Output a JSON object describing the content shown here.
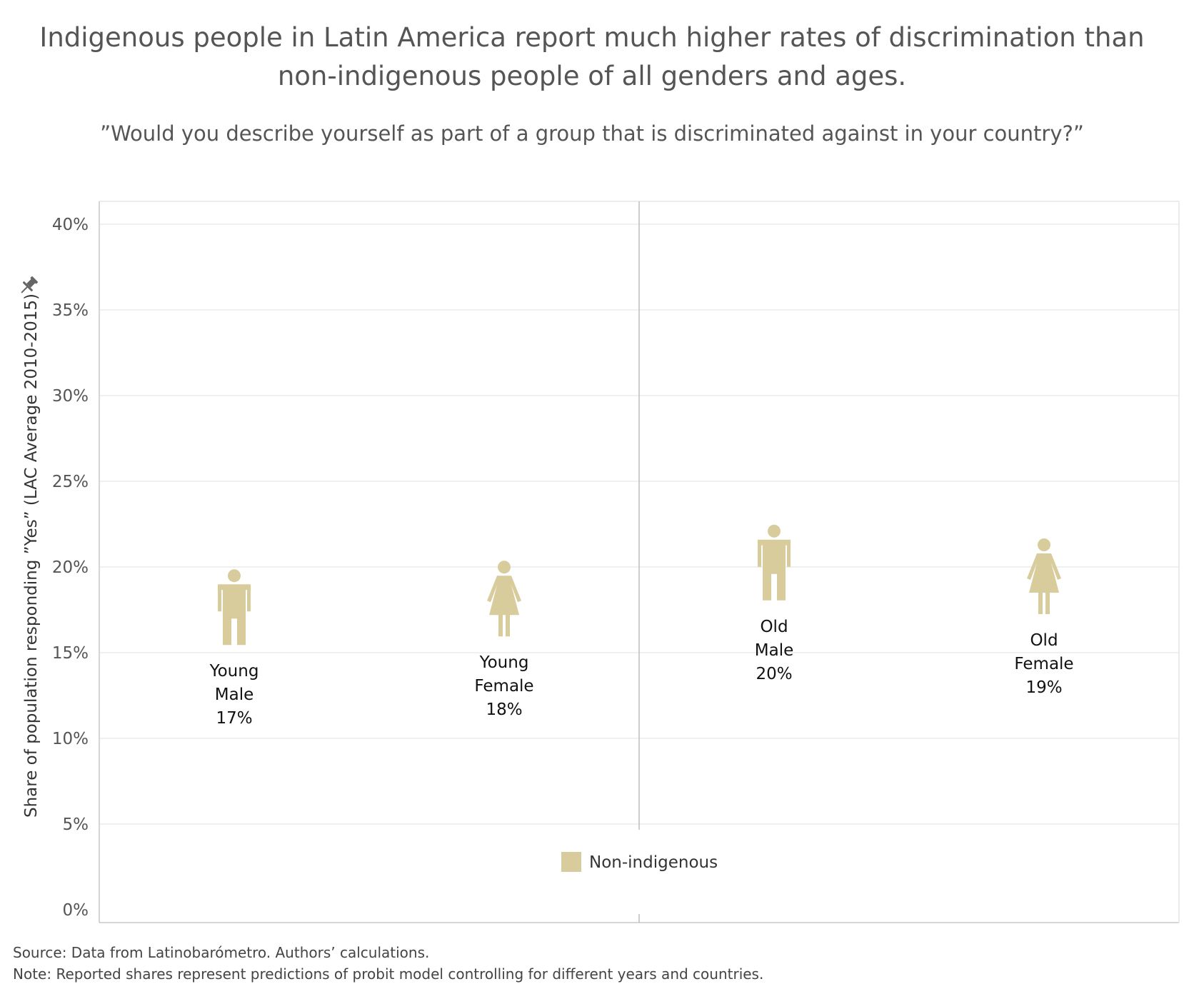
{
  "chart_data": {
    "type": "scatter",
    "title_lines": [
      "Indigenous people in Latin America report much higher rates of discrimination than",
      "non-indigenous people of all genders and ages."
    ],
    "subtitle": "”Would you describe yourself as part of a group that is discriminated against in your country?”",
    "ylabel": "Share of population responding ”Yes” (LAC Average 2010-2015)",
    "ylim": [
      0,
      42
    ],
    "y_ticks": [
      {
        "value": 0,
        "label": "0%"
      },
      {
        "value": 5,
        "label": "5%"
      },
      {
        "value": 10,
        "label": "10%"
      },
      {
        "value": 15,
        "label": "15%"
      },
      {
        "value": 20,
        "label": "20%"
      },
      {
        "value": 25,
        "label": "25%"
      },
      {
        "value": 30,
        "label": "30%"
      },
      {
        "value": 35,
        "label": "35%"
      },
      {
        "value": 40,
        "label": "40%"
      }
    ],
    "grid": true,
    "panels": [
      "Young",
      "Old"
    ],
    "series": [
      {
        "name": "Non-indigenous",
        "color": "#d8cc9c",
        "points": [
          {
            "group": "Young",
            "gender": "Male",
            "label_lines": [
              "Young",
              "Male",
              "17%"
            ],
            "value": 17.2
          },
          {
            "group": "Young",
            "gender": "Female",
            "label_lines": [
              "Young",
              "Female",
              "18%"
            ],
            "value": 17.7
          },
          {
            "group": "Old",
            "gender": "Male",
            "label_lines": [
              "Old",
              "Male",
              "20%"
            ],
            "value": 19.8
          },
          {
            "group": "Old",
            "gender": "Female",
            "label_lines": [
              "Old",
              "Female",
              "19%"
            ],
            "value": 19.0
          }
        ]
      }
    ],
    "legend_position": "bottom-center",
    "pin_icon": "pin-icon"
  },
  "notes": {
    "source": "Source: Data from Latinobarómetro. Authors’ calculations.",
    "note": "Note: Reported shares represent predictions of probit model controlling for different years and countries."
  },
  "colors": {
    "text": "#555555",
    "grid": "#e6e6e6",
    "axis": "#c8c8c8",
    "divider": "#bdbdbd",
    "marker": "#d8cc9c",
    "label": "#111111"
  }
}
